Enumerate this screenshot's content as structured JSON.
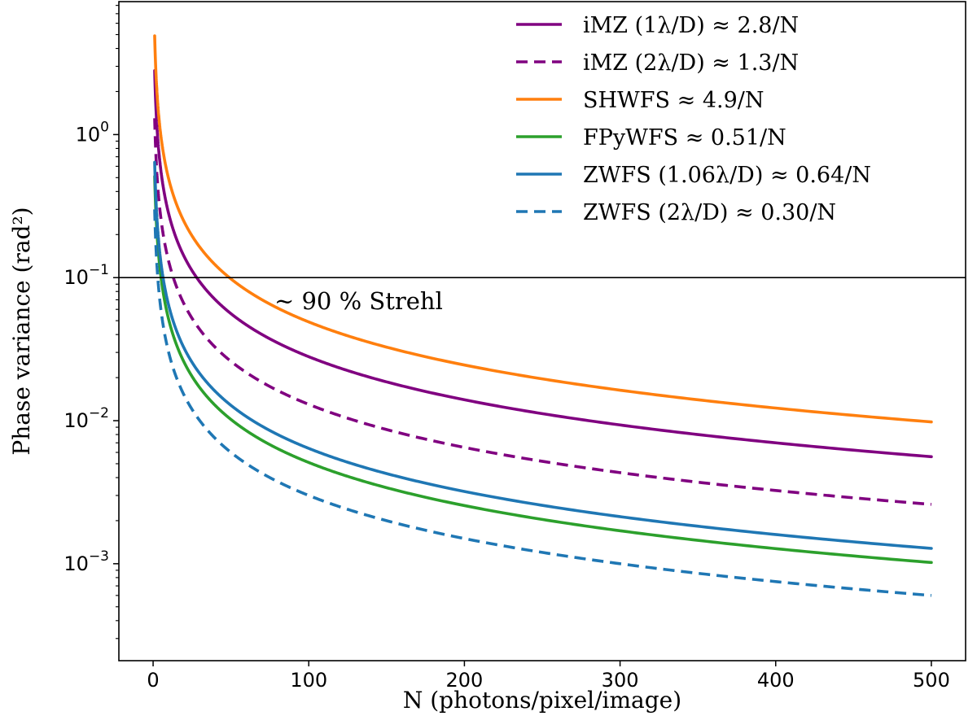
{
  "chart_data": {
    "type": "line",
    "title": "",
    "xlabel": "N (photons/pixel/image)",
    "ylabel": "Phase variance (rad²)",
    "xscale": "linear",
    "yscale": "log",
    "xlim": [
      -22,
      522
    ],
    "ylim": [
      0.00021,
      8.5
    ],
    "x_range": [
      1,
      500
    ],
    "xticks": [
      0,
      100,
      200,
      300,
      400,
      500
    ],
    "xtick_labels": [
      "0",
      "100",
      "200",
      "300",
      "400",
      "500"
    ],
    "yticks": [
      0.001,
      0.01,
      0.1,
      1
    ],
    "ytick_labels": [
      {
        "base": "10",
        "exp": "−3"
      },
      {
        "base": "10",
        "exp": "−2"
      },
      {
        "base": "10",
        "exp": "−1"
      },
      {
        "base": "10",
        "exp": "0"
      }
    ],
    "grid": false,
    "legend_position": "top-right",
    "series": [
      {
        "name": "iMZ (1λ/D) ≈ 2.8/N",
        "coefficient": 2.8,
        "color": "#800080",
        "dash": "solid"
      },
      {
        "name": "iMZ (2λ/D) ≈ 1.3/N",
        "coefficient": 1.3,
        "color": "#800080",
        "dash": "dashed"
      },
      {
        "name": "SHWFS ≈ 4.9/N",
        "coefficient": 4.9,
        "color": "#ff7f0e",
        "dash": "solid"
      },
      {
        "name": "FPyWFS ≈ 0.51/N",
        "coefficient": 0.51,
        "color": "#2ca02c",
        "dash": "solid"
      },
      {
        "name": "ZWFS (1.06λ/D) ≈ 0.64/N",
        "coefficient": 0.64,
        "color": "#1f77b4",
        "dash": "solid"
      },
      {
        "name": "ZWFS (2λ/D) ≈ 0.30/N",
        "coefficient": 0.3,
        "color": "#1f77b4",
        "dash": "dashed"
      }
    ],
    "reference_line": {
      "y": 0.1,
      "label": "~ 90 % Strehl",
      "color": "#000000"
    }
  }
}
